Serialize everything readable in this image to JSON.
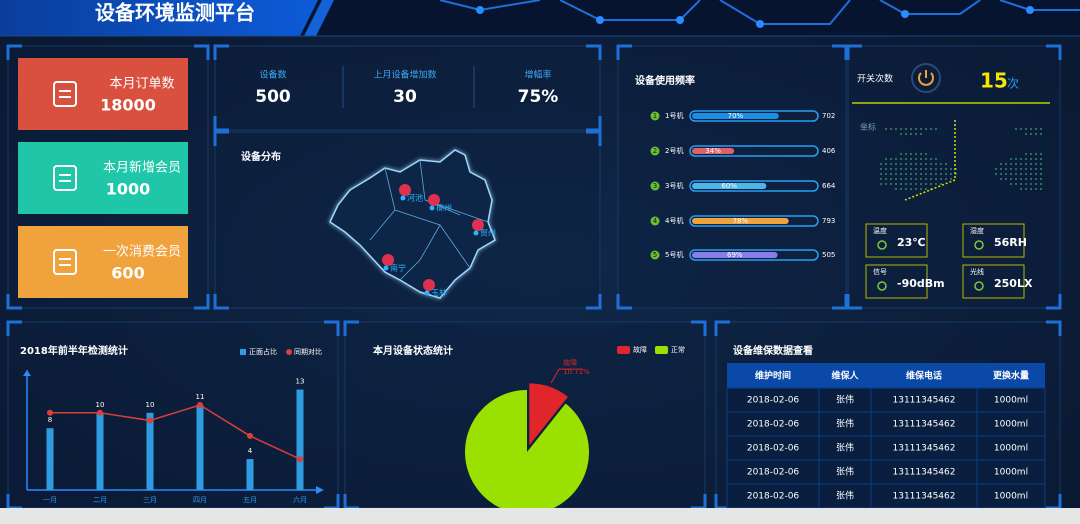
{
  "header": {
    "title": "设备环境监测平台"
  },
  "cards": [
    {
      "label": "本月订单数",
      "value": 18000,
      "color": "#d9503f"
    },
    {
      "label": "本月新增会员",
      "value": 1000,
      "color": "#1fc7a8"
    },
    {
      "label": "一次消费会员",
      "value": 600,
      "color": "#f0a23c"
    }
  ],
  "stats": [
    {
      "label": "设备数",
      "value": 500
    },
    {
      "label": "上月设备增加数",
      "value": 30
    },
    {
      "label": "增幅率",
      "value": 75,
      "value_label": "75%"
    }
  ],
  "map": {
    "title": "设备分布",
    "cities": [
      "河池",
      "柳州",
      "贺州",
      "南宁",
      "玉林"
    ]
  },
  "usage": {
    "title": "设备使用频率",
    "rows": [
      {
        "index": 1,
        "name": "1号机",
        "percent": 70,
        "percent_label": "70%",
        "count": 702,
        "color": "#1a8fe6"
      },
      {
        "index": 2,
        "name": "2号机",
        "percent": 34,
        "percent_label": "34%",
        "count": 406,
        "color": "#e0606a"
      },
      {
        "index": 3,
        "name": "3号机",
        "percent": 60,
        "percent_label": "60%",
        "count": 664,
        "color": "#4db8e8"
      },
      {
        "index": 4,
        "name": "4号机",
        "percent": 78,
        "percent_label": "78%",
        "count": 793,
        "color": "#f0a23c"
      },
      {
        "index": 5,
        "name": "5号机",
        "percent": 69,
        "percent_label": "69%",
        "count": 505,
        "color": "#8a7ce8"
      }
    ]
  },
  "switch": {
    "label": "开关次数",
    "value": 15,
    "unit": "次"
  },
  "globe": {
    "label": "坐标"
  },
  "sensors": [
    {
      "label": "温度",
      "value": "23℃"
    },
    {
      "label": "湿度",
      "value": "56RH"
    },
    {
      "label": "信号",
      "value": "-90dBm"
    },
    {
      "label": "光线",
      "value": "250LX"
    }
  ],
  "chart_data": [
    {
      "type": "combo",
      "title": "2018年前半年检测统计",
      "categories": [
        "一月",
        "二月",
        "三月",
        "四月",
        "五月",
        "六月"
      ],
      "ylim": [
        0,
        14.5
      ],
      "series": [
        {
          "name": "正面占比",
          "type": "bar",
          "color": "#2f9be0",
          "values": [
            8,
            10,
            10,
            11,
            4,
            13
          ]
        },
        {
          "name": "同期对比",
          "type": "line",
          "color": "#d9403a",
          "values": [
            10,
            10,
            9,
            11,
            7,
            4
          ]
        }
      ]
    },
    {
      "type": "pie",
      "title": "本月设备状态统计",
      "categories": [
        "故障",
        "正常"
      ],
      "values": [
        10.71,
        89.29
      ],
      "value_labels": [
        "10.71%",
        null
      ],
      "colors": [
        "#e0262a",
        "#9ae000"
      ]
    }
  ],
  "table": {
    "title": "设备维保数据查看",
    "columns": [
      "维护时间",
      "维保人",
      "维保电话",
      "更换水量"
    ],
    "rows": [
      [
        "2018-02-06",
        "张伟",
        "13111345462",
        "1000ml"
      ],
      [
        "2018-02-06",
        "张伟",
        "13111345462",
        "1000ml"
      ],
      [
        "2018-02-06",
        "张伟",
        "13111345462",
        "1000ml"
      ],
      [
        "2018-02-06",
        "张伟",
        "13111345462",
        "1000ml"
      ],
      [
        "2018-02-06",
        "张伟",
        "13111345462",
        "1000ml"
      ]
    ]
  }
}
